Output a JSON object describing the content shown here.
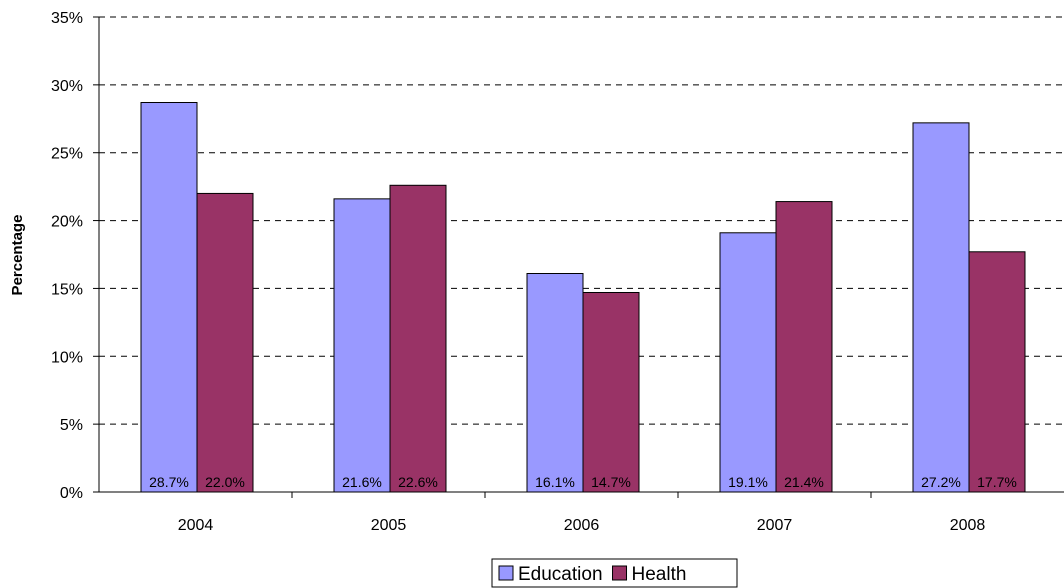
{
  "chart_data": {
    "type": "bar",
    "title": "",
    "xlabel": "",
    "ylabel": "Percentage",
    "categories": [
      "2004",
      "2005",
      "2006",
      "2007",
      "2008"
    ],
    "series": [
      {
        "name": "Education",
        "values": [
          28.7,
          21.6,
          16.1,
          19.1,
          27.2
        ],
        "labels": [
          "28.7%",
          "21.6%",
          "16.1%",
          "19.1%",
          "27.2%"
        ],
        "color": "#9999ff"
      },
      {
        "name": "Health",
        "values": [
          22.0,
          22.6,
          14.7,
          21.4,
          17.7
        ],
        "labels": [
          "22.0%",
          "22.6%",
          "14.7%",
          "21.4%",
          "17.7%"
        ],
        "color": "#993366"
      }
    ],
    "ylim": [
      0,
      35
    ],
    "yticks": [
      0,
      5,
      10,
      15,
      20,
      25,
      30,
      35
    ],
    "ytick_labels": [
      "0%",
      "5%",
      "10%",
      "15%",
      "20%",
      "25%",
      "30%",
      "35%"
    ],
    "grid": "horizontal dashed",
    "legend_position": "bottom-center"
  }
}
